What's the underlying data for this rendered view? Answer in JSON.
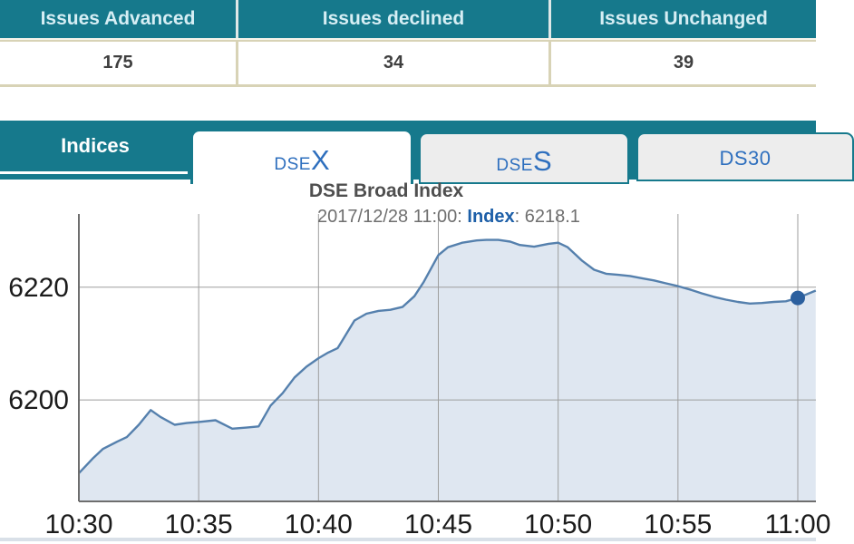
{
  "issues_table": {
    "columns": [
      {
        "label": "Issues Advanced",
        "value": "175"
      },
      {
        "label": "Issues declined",
        "value": "34"
      },
      {
        "label": "Issues Unchanged",
        "value": "39"
      }
    ]
  },
  "tabbar": {
    "section_label": "Indices",
    "tabs": [
      {
        "id": "dsex",
        "prefix": "DSE",
        "suffix": "X",
        "active": true
      },
      {
        "id": "dses",
        "prefix": "DSE",
        "suffix": "S",
        "active": false
      },
      {
        "id": "ds30",
        "prefix": "DS30",
        "suffix": "",
        "active": false
      }
    ]
  },
  "chart_header": {
    "title": "DSE Broad Index",
    "tooltip_datetime": "2017/12/28 11:00: ",
    "tooltip_label": "Index",
    "tooltip_value": ": 6218.1"
  },
  "colors": {
    "teal": "#16798c",
    "header_text": "#d6eef4",
    "table_border": "#d8d3b6",
    "tab_blue": "#2e6fbe",
    "tab_gray_bg": "#ededed",
    "title_gray": "#4f4f4f",
    "subtitle_gray": "#6f6f6f",
    "index_blue": "#1d5fa8"
  },
  "chart_data": {
    "type": "area",
    "title": "DSE Broad Index",
    "series_name": "Index",
    "x_unit": "minutes after 10:30",
    "grid": true,
    "xlim": [
      0,
      30
    ],
    "ylim": [
      6182,
      6233
    ],
    "x_ticks": [
      {
        "m": 0,
        "label": "10:30"
      },
      {
        "m": 5,
        "label": "10:35"
      },
      {
        "m": 10,
        "label": "10:40"
      },
      {
        "m": 15,
        "label": "10:45"
      },
      {
        "m": 20,
        "label": "10:50"
      },
      {
        "m": 25,
        "label": "10:55"
      },
      {
        "m": 30,
        "label": "11:00"
      }
    ],
    "y_ticks": [
      {
        "v": 6200,
        "label": "6200"
      },
      {
        "v": 6220,
        "label": "6220"
      }
    ],
    "points": [
      [
        0,
        6187.0
      ],
      [
        0.6,
        6189.7
      ],
      [
        1,
        6191.3
      ],
      [
        1.6,
        6192.6
      ],
      [
        2,
        6193.4
      ],
      [
        2.5,
        6195.6
      ],
      [
        3,
        6198.2
      ],
      [
        3.4,
        6197.0
      ],
      [
        4,
        6195.6
      ],
      [
        4.5,
        6195.9
      ],
      [
        5,
        6196.1
      ],
      [
        5.7,
        6196.4
      ],
      [
        6.4,
        6194.9
      ],
      [
        7,
        6195.1
      ],
      [
        7.5,
        6195.3
      ],
      [
        8,
        6199.0
      ],
      [
        8.5,
        6201.2
      ],
      [
        9,
        6204.0
      ],
      [
        9.5,
        6205.9
      ],
      [
        10,
        6207.4
      ],
      [
        10.4,
        6208.4
      ],
      [
        10.8,
        6209.2
      ],
      [
        11,
        6210.6
      ],
      [
        11.5,
        6214.1
      ],
      [
        12,
        6215.3
      ],
      [
        12.5,
        6215.8
      ],
      [
        13,
        6216.0
      ],
      [
        13.5,
        6216.5
      ],
      [
        14,
        6218.4
      ],
      [
        14.4,
        6221.0
      ],
      [
        15,
        6225.7
      ],
      [
        15.4,
        6227.1
      ],
      [
        16,
        6227.9
      ],
      [
        16.6,
        6228.3
      ],
      [
        17,
        6228.4
      ],
      [
        17.5,
        6228.4
      ],
      [
        18,
        6228.1
      ],
      [
        18.4,
        6227.5
      ],
      [
        19,
        6227.2
      ],
      [
        19.6,
        6227.7
      ],
      [
        20,
        6227.9
      ],
      [
        20.4,
        6227.1
      ],
      [
        21,
        6224.7
      ],
      [
        21.5,
        6223.1
      ],
      [
        22,
        6222.4
      ],
      [
        22.5,
        6222.2
      ],
      [
        23,
        6222.0
      ],
      [
        23.5,
        6221.6
      ],
      [
        24,
        6221.2
      ],
      [
        24.5,
        6220.7
      ],
      [
        25,
        6220.2
      ],
      [
        25.5,
        6219.6
      ],
      [
        26,
        6218.9
      ],
      [
        26.5,
        6218.3
      ],
      [
        27,
        6217.8
      ],
      [
        27.5,
        6217.4
      ],
      [
        28,
        6217.1
      ],
      [
        28.5,
        6217.2
      ],
      [
        29,
        6217.4
      ],
      [
        29.5,
        6217.5
      ],
      [
        30,
        6218.1
      ],
      [
        30.75,
        6219.4
      ]
    ],
    "last_point": {
      "time": "11:00",
      "value": 6218.1
    },
    "colors": {
      "grid": "#9e9e9e",
      "axis": "#6e6e6e",
      "tick_text": "#1b1b1b",
      "area_fill": "#dfe7f1",
      "line": "#5580ad",
      "dot": "#2b5f9e"
    }
  }
}
